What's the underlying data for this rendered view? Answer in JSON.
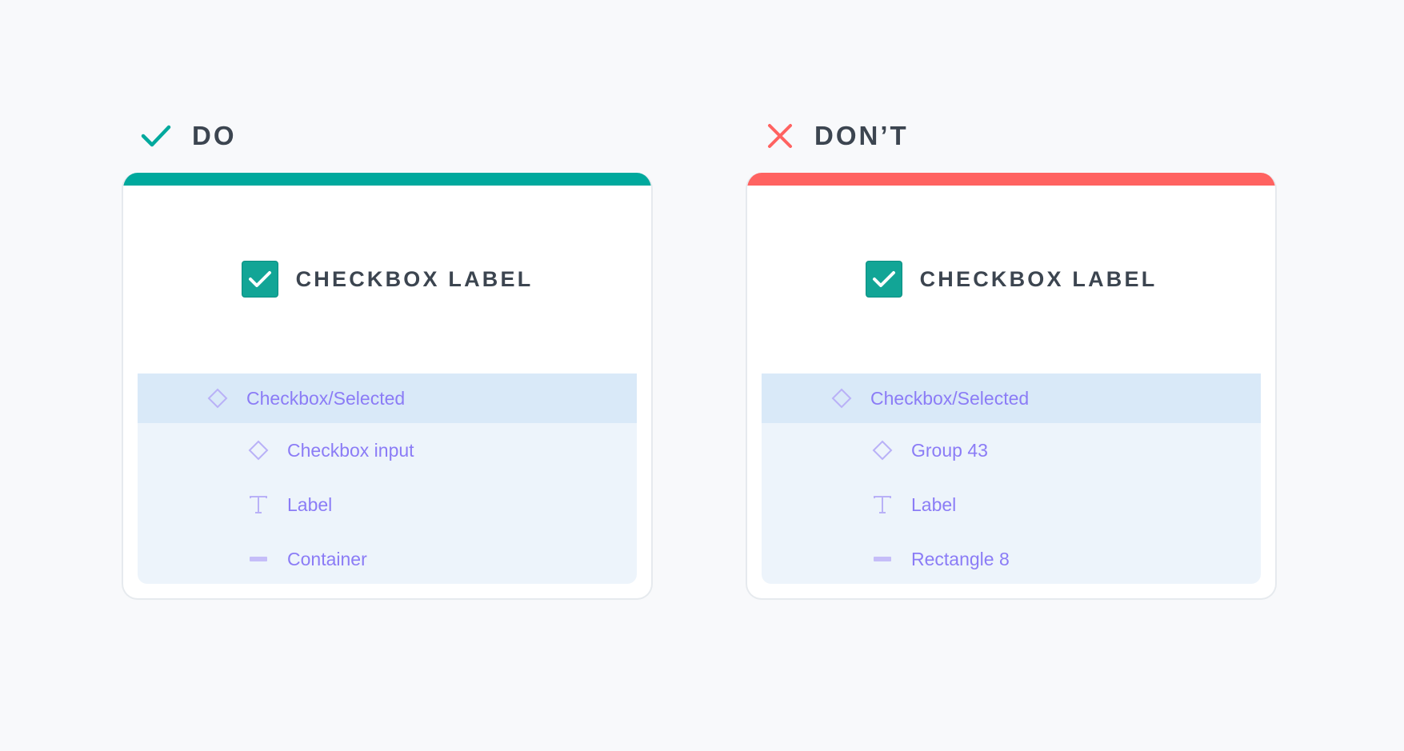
{
  "colors": {
    "do": "#00a99d",
    "dont": "#ff6361",
    "layer_text": "#8b7cf6",
    "heading_text": "#3c4550"
  },
  "do": {
    "heading": "DO",
    "heading_icon": "check-icon",
    "checkbox_label": "CHECKBOX LABEL",
    "checkbox_checked": true,
    "layers": [
      {
        "icon": "component-icon",
        "label": "Checkbox/Selected",
        "selected": true
      },
      {
        "icon": "component-icon",
        "label": "Checkbox input"
      },
      {
        "icon": "text-icon",
        "label": "Label"
      },
      {
        "icon": "rectangle-icon",
        "label": "Container"
      }
    ]
  },
  "dont": {
    "heading": "DON’T",
    "heading_icon": "x-icon",
    "checkbox_label": "CHECKBOX LABEL",
    "checkbox_checked": true,
    "layers": [
      {
        "icon": "component-icon",
        "label": "Checkbox/Selected",
        "selected": true
      },
      {
        "icon": "component-icon",
        "label": "Group 43"
      },
      {
        "icon": "text-icon",
        "label": "Label"
      },
      {
        "icon": "rectangle-icon",
        "label": "Rectangle 8"
      }
    ]
  }
}
